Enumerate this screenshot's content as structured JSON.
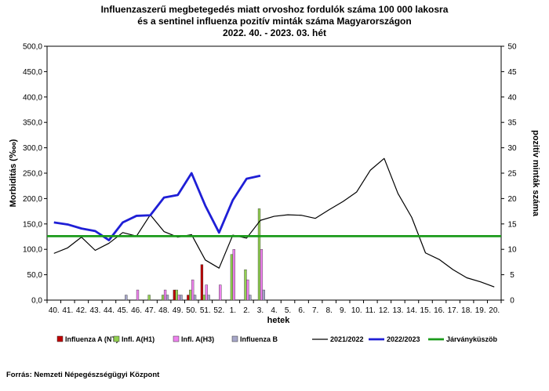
{
  "chart_data": {
    "type": "bar",
    "title": [
      "Influenzaszerű megbetegedés miatt orvoshoz fordulók száma 100 000 lakosra",
      "és a sentinel influenza pozitív minták száma Magyarországon",
      "2022. 40. - 2023. 03. hét"
    ],
    "xlabel": "hetek",
    "ylabel_left": "Morbiditás (‱)",
    "ylabel_right": "pozitív minták száma",
    "ylim_left": [
      0,
      500
    ],
    "ylim_right": [
      0,
      50
    ],
    "y_ticks_left": [
      "0,0",
      "50,0",
      "100,0",
      "150,0",
      "200,0",
      "250,0",
      "300,0",
      "350,0",
      "400,0",
      "450,0",
      "500,0"
    ],
    "y_ticks_right": [
      "0",
      "5",
      "10",
      "15",
      "20",
      "25",
      "30",
      "35",
      "40",
      "45",
      "50"
    ],
    "categories": [
      "40.",
      "41.",
      "42.",
      "43.",
      "44.",
      "45.",
      "46.",
      "47.",
      "48.",
      "49.",
      "50.",
      "51.",
      "52.",
      "1.",
      "2.",
      "3.",
      "4.",
      "5.",
      "6.",
      "7.",
      "8.",
      "9.",
      "10.",
      "11.",
      "12.",
      "13.",
      "14.",
      "15.",
      "16.",
      "17.",
      "18.",
      "19.",
      "20."
    ],
    "bar_series": [
      {
        "name": "Influenza A (NT)",
        "color": "#c00000",
        "axis": "right",
        "values": [
          0,
          0,
          0,
          0,
          0,
          0,
          0,
          0,
          0,
          2,
          1,
          7,
          0,
          0,
          0,
          0,
          null,
          null,
          null,
          null,
          null,
          null,
          null,
          null,
          null,
          null,
          null,
          null,
          null,
          null,
          null,
          null,
          null
        ]
      },
      {
        "name": "Infl. A(H1)",
        "color": "#92d050",
        "axis": "right",
        "values": [
          0,
          0,
          0,
          0,
          0,
          0,
          0,
          1,
          1,
          2,
          2,
          1,
          0,
          9,
          6,
          18,
          null,
          null,
          null,
          null,
          null,
          null,
          null,
          null,
          null,
          null,
          null,
          null,
          null,
          null,
          null,
          null,
          null
        ]
      },
      {
        "name": "Infl. A(H3)",
        "color": "#ee82ee",
        "axis": "right",
        "values": [
          0,
          0,
          0,
          0,
          0,
          0,
          2,
          0,
          2,
          1,
          4,
          3,
          3,
          10,
          4,
          10,
          null,
          null,
          null,
          null,
          null,
          null,
          null,
          null,
          null,
          null,
          null,
          null,
          null,
          null,
          null,
          null,
          null
        ]
      },
      {
        "name": "Influenza B",
        "color": "#a6a6c8",
        "axis": "right",
        "values": [
          0,
          0,
          0,
          0,
          0,
          1,
          0,
          0,
          1,
          1,
          1,
          1,
          0,
          0,
          1,
          2,
          null,
          null,
          null,
          null,
          null,
          null,
          null,
          null,
          null,
          null,
          null,
          null,
          null,
          null,
          null,
          null,
          null
        ]
      }
    ],
    "line_series": [
      {
        "name": "2021/2022",
        "color": "#000000",
        "axis": "left",
        "values": [
          92,
          103,
          124,
          98,
          112,
          133,
          126,
          168,
          135,
          124,
          129,
          79,
          63,
          128,
          122,
          157,
          165,
          168,
          167,
          161,
          178,
          194,
          213,
          256,
          279,
          210,
          163,
          93,
          80,
          60,
          44,
          36,
          26
        ]
      },
      {
        "name": "2022/2023",
        "color": "#1f1fd6",
        "axis": "left",
        "values": [
          153,
          149,
          141,
          136,
          118,
          153,
          166,
          167,
          202,
          207,
          250,
          186,
          133,
          197,
          239,
          245,
          null,
          null,
          null,
          null,
          null,
          null,
          null,
          null,
          null,
          null,
          null,
          null,
          null,
          null,
          null,
          null,
          null
        ]
      },
      {
        "name": "Járványküszöb",
        "color": "#1a9a1a",
        "axis": "left",
        "values": [
          126,
          126,
          126,
          126,
          126,
          126,
          126,
          126,
          126,
          126,
          126,
          126,
          126,
          126,
          126,
          126,
          126,
          126,
          126,
          126,
          126,
          126,
          126,
          126,
          126,
          126,
          126,
          126,
          126,
          126,
          126,
          126,
          126
        ]
      }
    ],
    "legend": [
      "Influenza A (NT)",
      "Infl. A(H1)",
      "Infl. A(H3)",
      "Influenza B",
      "2021/2022",
      "2022/2023",
      "Járványküszöb"
    ],
    "legend_position": "bottom",
    "grid": false
  },
  "source": "Forrás: Nemzeti Népegészségügyi Központ"
}
